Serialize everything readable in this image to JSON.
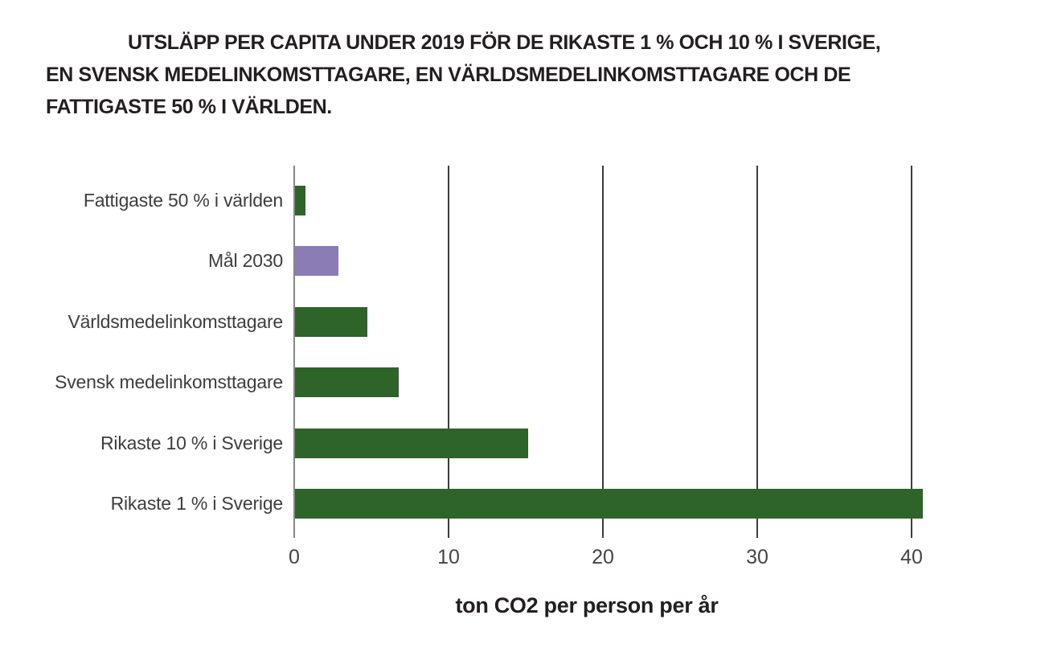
{
  "title": {
    "lines": [
      "UTSLÄPP PER CAPITA UNDER 2019 FÖR DE RIKASTE 1 % OCH 10 % I SVERIGE,",
      "EN SVENSK MEDELINKOMSTTAGARE, EN VÄRLDSMEDELINKOMSTTAGARE OCH DE",
      "FATTIGASTE 50 % I VÄRLDEN."
    ]
  },
  "chart_data": {
    "type": "bar",
    "orientation": "horizontal",
    "title": "UTSLÄPP PER CAPITA UNDER 2019 FÖR DE RIKASTE 1 % OCH 10 % I SVERIGE, EN SVENSK MEDELINKOMSTTAGARE, EN VÄRLDSMEDELINKOMSTTAGARE OCH DE FATTIGASTE 50 % I VÄRLDEN.",
    "categories": [
      "Fattigaste 50 % i världen",
      "Mål 2030",
      "Världsmedelinkomsttagare",
      "Svensk medelinkomsttagare",
      "Rikaste 10 % i Sverige",
      "Rikaste 1 % i Sverige"
    ],
    "values": [
      0.7,
      2.8,
      4.7,
      6.7,
      15.1,
      40.7
    ],
    "bar_colors": [
      "#2e632a",
      "#8b7db3",
      "#2e632a",
      "#2e632a",
      "#2e632a",
      "#2e632a"
    ],
    "xlabel": "ton CO2 per person per år",
    "x_ticks": [
      0,
      10,
      20,
      30,
      40
    ],
    "xlim": [
      0,
      44
    ],
    "grid": true,
    "legend": false,
    "colors": {
      "bar_green": "#2e632a",
      "bar_purple": "#8b7db3",
      "gridline": "#3d3d3d",
      "zero_axis": "#868686",
      "title_text": "#231f20",
      "label_text": "#3d3d3d"
    }
  }
}
